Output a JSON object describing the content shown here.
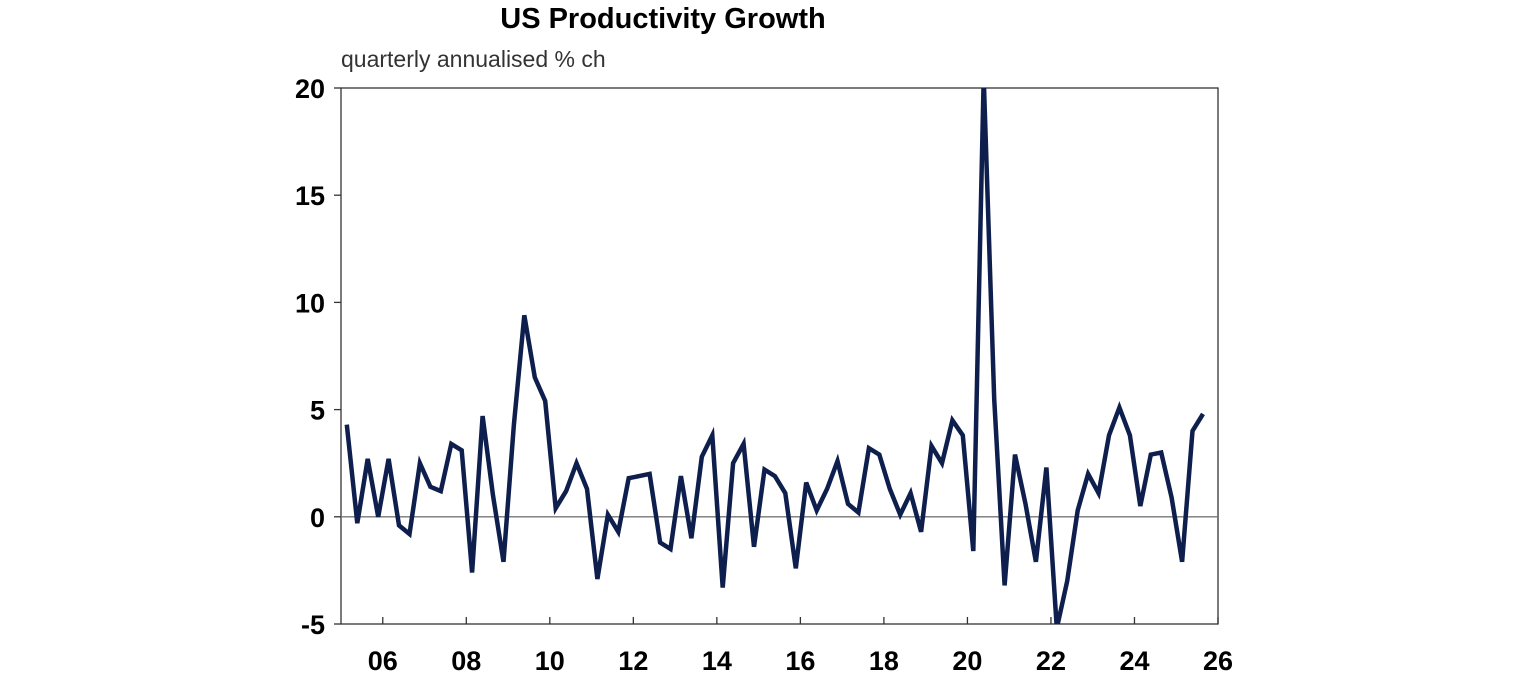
{
  "chart_data": {
    "type": "line",
    "title": "US Productivity Growth",
    "subtitle": "quarterly annualised % ch",
    "xlabel": "",
    "ylabel": "",
    "xlim": [
      2005,
      2026
    ],
    "ylim": [
      -5,
      20
    ],
    "yticks": [
      20,
      15,
      10,
      5,
      0,
      -5
    ],
    "ytick_labels": [
      "20",
      "15",
      "10",
      "5",
      "0",
      "-5"
    ],
    "xticks": [
      2006,
      2008,
      2010,
      2012,
      2014,
      2016,
      2018,
      2020,
      2022,
      2024,
      2026
    ],
    "xtick_labels": [
      "06",
      "08",
      "10",
      "12",
      "14",
      "16",
      "18",
      "20",
      "22",
      "24",
      "26"
    ],
    "grid": false,
    "zero_line": true,
    "line_color": "#0f1f4d",
    "frequency": "quarterly",
    "start": "2005Q1",
    "end": "2025Q3",
    "series": [
      {
        "values": [
          4.3,
          -0.3,
          2.7,
          0.0,
          2.7,
          -0.4,
          -0.8,
          2.5,
          1.4,
          1.2,
          3.4,
          3.1,
          -2.6,
          4.7,
          1.0,
          -2.1,
          4.3,
          9.4,
          6.5,
          5.4,
          0.4,
          1.2,
          2.5,
          1.3,
          -2.9,
          0.1,
          -0.7,
          1.8,
          1.9,
          2.0,
          -1.2,
          -1.5,
          1.9,
          -1.0,
          2.8,
          3.8,
          -3.3,
          2.5,
          3.4,
          -1.4,
          2.2,
          1.9,
          1.1,
          -2.4,
          1.6,
          0.3,
          1.3,
          2.6,
          0.6,
          0.2,
          3.2,
          2.9,
          1.3,
          0.1,
          1.1,
          -0.7,
          3.3,
          2.5,
          4.5,
          3.8,
          -1.6,
          20.5,
          5.5,
          -3.2,
          2.9,
          0.6,
          -2.1,
          2.3,
          -5.2,
          -3.0,
          0.3,
          2.0,
          1.1,
          3.8,
          5.1,
          3.8,
          0.5,
          2.9,
          3.0,
          0.9,
          -2.1,
          4.0,
          4.8
        ]
      }
    ]
  }
}
